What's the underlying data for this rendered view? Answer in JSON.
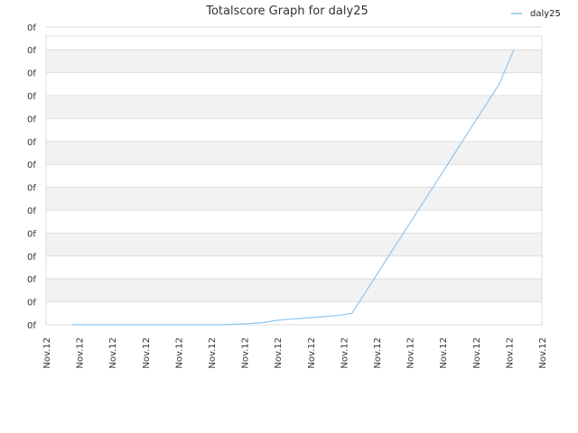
{
  "chart_data": {
    "type": "line",
    "title": "Totalscore Graph for daly25",
    "xlabel": "",
    "ylabel": "",
    "x": [
      "Nov.12",
      "Nov.12",
      "Nov.12",
      "Nov.12",
      "Nov.12",
      "Nov.12",
      "Nov.12",
      "Nov.12",
      "Nov.12",
      "Nov.12",
      "Nov.12",
      "Nov.12",
      "Nov.12",
      "Nov.12",
      "Nov.12",
      "Nov.12",
      "Nov.12",
      "Nov.12",
      "Nov.12",
      "Nov.12",
      "Nov.12",
      "Nov.12",
      "Nov.12",
      "Nov.12",
      "Nov.12",
      "Nov.12",
      "Nov.12",
      "Nov.12",
      "Nov.12",
      "Nov.12",
      "Nov.12"
    ],
    "x_tick_labels": [
      "Nov.12",
      "Nov.12",
      "Nov.12",
      "Nov.12",
      "Nov.12",
      "Nov.12",
      "Nov.12",
      "Nov.12",
      "Nov.12",
      "Nov.12",
      "Nov.12",
      "Nov.12",
      "Nov.12",
      "Nov.12",
      "Nov.12",
      "Nov.12"
    ],
    "y_tick_labels": [
      "0f",
      "0f",
      "0f",
      "0f",
      "0f",
      "0f",
      "0f",
      "0f",
      "0f",
      "0f",
      "0f",
      "0f",
      "0f",
      "0f"
    ],
    "ylim": [
      0,
      12.6
    ],
    "series": [
      {
        "name": "daly25",
        "color": "#8ec6f0",
        "values": [
          0,
          0,
          0,
          0,
          0,
          0,
          0,
          0,
          0,
          0,
          0,
          0.02,
          0.05,
          0.1,
          0.2,
          0.25,
          0.3,
          0.35,
          0.4,
          0.5,
          1.5,
          2.5,
          3.5,
          4.5,
          5.5,
          6.5,
          7.5,
          8.5,
          9.5,
          10.5,
          12.0
        ]
      }
    ],
    "grid": true,
    "legend_position": "top-right"
  },
  "colors": {
    "band_dark": "#f2f2f2",
    "band_light": "#ffffff",
    "gridline": "#dddddd",
    "axis": "#cccccc"
  }
}
